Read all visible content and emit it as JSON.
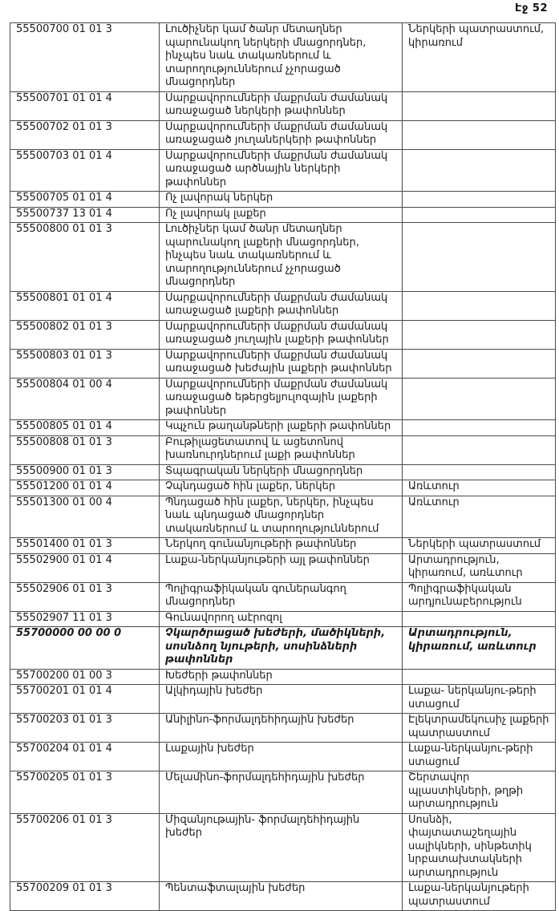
{
  "page": {
    "label": "Էջ 52"
  },
  "table": {
    "rows": [
      {
        "code": "55500700 01 01 3",
        "desc": "Լուծիչներ կամ ծանր մետաղներ պարունակող ներկերի մնացորդներ, ինչպես նաև տակառներում և տարողություններում չչորացած մնացորդներ",
        "source": "Ներկերի պատրաստում, կիրառում",
        "emph": false
      },
      {
        "code": "55500701 01 01 4",
        "desc": "Սարքավորումների մաքրման ժամանակ առաջացած ներկերի թափոններ",
        "source": "",
        "emph": false
      },
      {
        "code": "55500702 01 01 3",
        "desc": "Սարքավորումների մաքրման ժամանակ առաջացած յուղաներկերի թափոններ",
        "source": "",
        "emph": false
      },
      {
        "code": "55500703 01 01 4",
        "desc": "Սարքավորումների մաքրման ժամանակ առաջացած արծնային  ներկերի թափոններ",
        "source": "",
        "emph": false
      },
      {
        "code": "55500705 01 01 4",
        "desc": "Ոչ լավորակ ներկեր",
        "source": "",
        "emph": false
      },
      {
        "code": "55500737 13 01 4",
        "desc": "Ոչ լավորակ լաքեր",
        "source": "",
        "emph": false
      },
      {
        "code": "55500800 01 01 3",
        "desc": "Լուծիչներ կամ ծանր մետաղներ պարունակող լաքերի մնացորդներ, ինչպես նաև տակառներում  և տարողություններում չչորացած մնացորդներ",
        "source": "",
        "emph": false
      },
      {
        "code": "55500801 01 01 4",
        "desc": "Սարքավորումների մաքրման ժամանակ առաջացած լաքերի թափոններ",
        "source": "",
        "emph": false
      },
      {
        "code": "55500802 01 01 3",
        "desc": "Սարքավորումների մաքրման ժամանակ առաջացած յուղային լաքերի թափոններ",
        "source": "",
        "emph": false
      },
      {
        "code": "55500803 01 01 3",
        "desc": "Սարքավորումների մաքրման ժամանակ առաջացած խեժային լաքերի թափոններ",
        "source": "",
        "emph": false
      },
      {
        "code": "55500804 01 00 4",
        "desc": "Սարքավորումների մաքրման ժամանակ առաջացած եթերցելյուլոզային լաքերի թափոններ",
        "source": "",
        "emph": false
      },
      {
        "code": "55500805 01 01 4",
        "desc": "Կպչուն  թաղանթների լաքերի թափոններ",
        "source": "",
        "emph": false
      },
      {
        "code": "55500808 01 01 3",
        "desc": "Բութիլացետատով և ացետոնով խառնուրդներում լաքի թափոններ",
        "source": "",
        "emph": false
      },
      {
        "code": "55500900 01 01 3",
        "desc": "Տպագրական ներկերի մնացորդներ",
        "source": "",
        "emph": false
      },
      {
        "code": "55501200 01 01 4",
        "desc": "Չպնդացած հին լաքեր, ներկեր",
        "source": "Առևտուր",
        "emph": false
      },
      {
        "code": "55501300 01 00 4",
        "desc": "Պնդացած հին լաքեր, ներկեր, ինչպես նաև պնդացած մնացորդներ տակառներում և տարողություններում",
        "source": "Առևտուր",
        "emph": false
      },
      {
        "code": "55501400 01 01 3",
        "desc": "Ներկող գունանյութերի թափոններ",
        "source": "Ներկերի պատրաստում",
        "emph": false
      },
      {
        "code": "55502900 01 01 4",
        "desc": "Լաքա-ներկանյութերի այլ թափոններ",
        "source": "Արտադրություն, կիրառում, առևտուր",
        "emph": false
      },
      {
        "code": "55502906 01 01 3",
        "desc": "Պոլիգրաֆիկական գուներանգող մնացորդներ",
        "source": "Պոլիգրաֆիկական արդյունաբերություն",
        "emph": false
      },
      {
        "code": "55502907 11 01 3",
        "desc": "Գունավորող աէրոզոլ",
        "source": "",
        "emph": false
      },
      {
        "code": "55700000 00 00 0",
        "desc": "Չկարծրացած խեժերի, մածիկների, սոսնձող նյութերի, սոսինձների թափոններ",
        "source": "Արտադրություն, կիրառում, առևտուր",
        "emph": true
      },
      {
        "code": "55700200 01 00 3",
        "desc": "Խեժերի թափոններ",
        "source": "",
        "emph": false
      },
      {
        "code": "55700201 01 01 4",
        "desc": "Ալկիդային խեժեր",
        "source": "Լաքա- ներկանյու-թերի ստացում",
        "emph": false
      },
      {
        "code": "55700203 01 01 3",
        "desc": "Անիլինո-ֆորմալդեհիդային խեժեր",
        "source": "Էլեկտրամեկուսիչ լաքերի պատրաստում",
        "emph": false
      },
      {
        "code": "55700204 01 01 4",
        "desc": "Լաքային խեժեր",
        "source": "Լաքա-ներկանյու-թերի ստացում",
        "emph": false
      },
      {
        "code": "55700205  01 01 3",
        "desc": "Մելամինո-ֆորմալդեհիդային խեժեր",
        "source": "Շերտավոր պլաստիկների, թղթի արտադրություն",
        "emph": false
      },
      {
        "code": "55700206 01 01 3",
        "desc": "Միզանյութային- ֆորմալդեհիդային խեժեր",
        "source": "Սոսնձի, փայտատաշեղային սալիկների, սինթետիկ նրբատախտակների արտադրություն",
        "emph": false
      },
      {
        "code": "55700209 01 01 3",
        "desc": "Պենտաֆտալային խեժեր",
        "source": "Լաքա-ներկանյութերի պատրաստում",
        "emph": false
      }
    ]
  }
}
